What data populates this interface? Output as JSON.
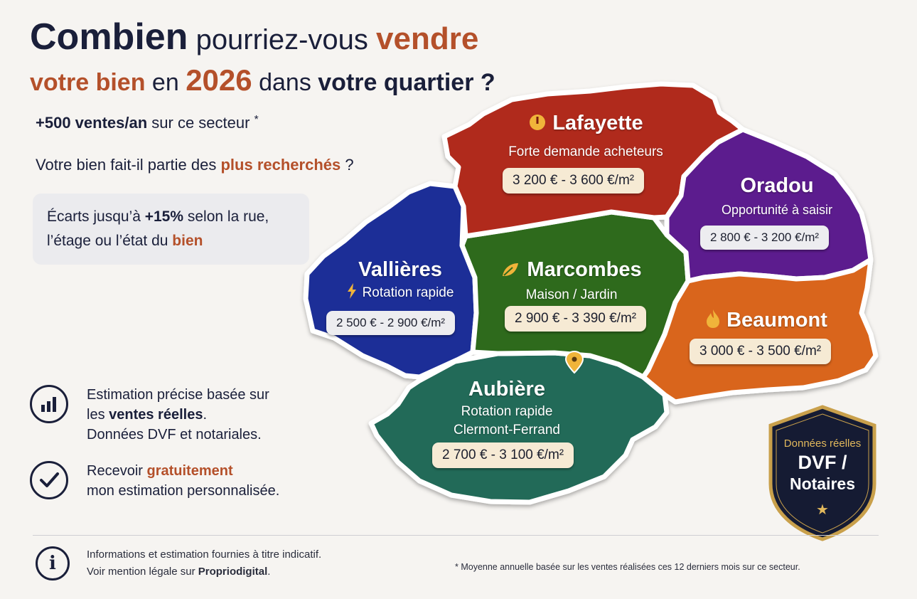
{
  "headline": {
    "l1_combien": "Combien",
    "l1_mid": " pourriez-vous ",
    "l1_vendre": "vendre",
    "l2_votre_bien": "votre bien",
    "l2_en": " en ",
    "l2_year": "2026",
    "l2_dans": " dans ",
    "l2_quartier": "votre quartier ?"
  },
  "sales": {
    "bold": "+500 ventes/an",
    "rest": " sur ce secteur",
    "asterisk": "*"
  },
  "question": {
    "pre": "Votre bien fait-il partie des ",
    "bold": "plus recherchés",
    "post": " ?"
  },
  "note": {
    "pre": "Écarts jusqu’à ",
    "bold": "+15%",
    "mid": " selon la rue,",
    "line2_pre": "l’étage ou l’état du ",
    "line2_bold": "bien"
  },
  "features": [
    {
      "icon": "bar-chart-icon",
      "line1": "Estimation précise basée sur",
      "line2_pre": "les ",
      "line2_bold": "ventes réelles",
      "line2_post": ".",
      "line3": "Données DVF et notariales."
    },
    {
      "icon": "checkmark-icon",
      "line1_pre": "Recevoir ",
      "line1_bold": "gratuitement",
      "line2": "mon estimation personnalisée."
    }
  ],
  "zones": [
    {
      "id": "lafayette",
      "name": "Lafayette",
      "icon": "clock-icon",
      "sub": "Forte demande acheteurs",
      "price": "3 200 € - 3 600 €/m²",
      "color": "#b02a1c"
    },
    {
      "id": "oradou",
      "name": "Oradou",
      "icon": "",
      "sub": "Opportunité à saisir",
      "price": "2 800 € - 3 200 €/m²",
      "color": "#5b1e8e"
    },
    {
      "id": "vallieres",
      "name": "Vallières",
      "icon": "lightning-icon",
      "sub": "Rotation rapide",
      "price": "2 500 € - 2 900 €/m²",
      "color": "#1d2f97"
    },
    {
      "id": "marcombes",
      "name": "Marcombes",
      "icon": "leaf-icon",
      "sub": "Maison / Jardin",
      "price": "2 900 € - 3 390 €/m²",
      "color": "#2d6a1f"
    },
    {
      "id": "beaumont",
      "name": "Beaumont",
      "icon": "flame-icon",
      "sub": "",
      "price": "3 000 € - 3 500 €/m²",
      "color": "#d9651e"
    },
    {
      "id": "aubiere",
      "name": "Aubière",
      "icon": "",
      "sub": "Rotation rapide",
      "sub2": "Clermont-Ferrand",
      "price": "2 700 € - 3 100 €/m²",
      "color": "#246b58"
    }
  ],
  "badge": {
    "top": "Données réelles",
    "main1": "DVF /",
    "main2": "Notaires",
    "star": "★"
  },
  "footer": {
    "line1": "Informations et estimation fournies à titre indicatif.",
    "line2_pre": "Voir mention légale sur ",
    "line2_bold": "Propriodigital",
    "line2_post": ".",
    "note": "* Moyenne annuelle basée sur les ventes réalisées ces 12 derniers mois sur ce secteur."
  }
}
